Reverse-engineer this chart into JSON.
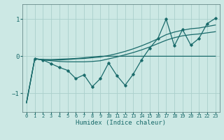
{
  "xlabel": "Humidex (Indice chaleur)",
  "xlim": [
    -0.5,
    23.5
  ],
  "ylim": [
    -1.5,
    1.4
  ],
  "yticks": [
    -1,
    0,
    1
  ],
  "xticks": [
    0,
    1,
    2,
    3,
    4,
    5,
    6,
    7,
    8,
    9,
    10,
    11,
    12,
    13,
    14,
    15,
    16,
    17,
    18,
    19,
    20,
    21,
    22,
    23
  ],
  "bg_color": "#cce8e4",
  "grid_color": "#aacfcc",
  "line_color": "#1a6b6b",
  "marker": "D",
  "marker_size": 1.8,
  "series": {
    "zigzag": [
      null,
      -0.06,
      -0.1,
      -0.2,
      -0.3,
      -0.38,
      -0.6,
      -0.5,
      -0.82,
      -0.6,
      -0.18,
      -0.52,
      -0.78,
      -0.48,
      -0.1,
      0.22,
      0.48,
      1.0,
      0.28,
      0.72,
      0.3,
      0.48,
      0.88,
      1.02
    ],
    "smooth_upper": [
      -1.25,
      -0.07,
      -0.09,
      -0.1,
      -0.1,
      -0.09,
      -0.07,
      -0.06,
      -0.04,
      -0.02,
      0.02,
      0.07,
      0.13,
      0.2,
      0.28,
      0.37,
      0.47,
      0.58,
      0.65,
      0.7,
      0.74,
      0.76,
      0.8,
      0.84
    ],
    "smooth_mid": [
      -1.25,
      -0.07,
      -0.1,
      -0.12,
      -0.14,
      -0.15,
      -0.15,
      -0.15,
      -0.14,
      -0.12,
      -0.07,
      -0.02,
      0.04,
      0.1,
      0.17,
      0.25,
      0.34,
      0.43,
      0.5,
      0.55,
      0.58,
      0.6,
      0.63,
      0.66
    ],
    "flat": [
      -1.25,
      -0.07,
      -0.09,
      -0.09,
      -0.08,
      -0.07,
      -0.06,
      -0.04,
      -0.02,
      0.0,
      0.0,
      0.0,
      0.0,
      0.0,
      0.0,
      0.0,
      0.0,
      0.0,
      0.0,
      0.0,
      0.0,
      0.0,
      0.0,
      0.0
    ]
  }
}
